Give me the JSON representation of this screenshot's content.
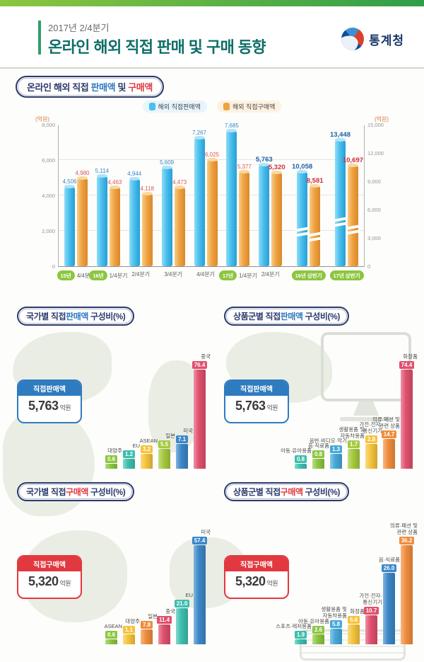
{
  "header": {
    "period": "2017년 2/4분기",
    "title": "온라인 해외 직접 판매 및 구매 동향",
    "agency": "통계청"
  },
  "main_section": {
    "title_pre": "온라인 해외 직접 ",
    "title_sales": "판매액",
    "title_mid": " 및 ",
    "title_purchase": "구매액",
    "left_unit": "(억원)",
    "right_unit": "(억원)",
    "legend": [
      {
        "label": "해외 직접판매액",
        "color": "#4bbfed"
      },
      {
        "label": "해외 직접구매액",
        "color": "#f0a343"
      }
    ]
  },
  "colors": {
    "sales_accent": "#2f7bbf",
    "purchase_accent": "#e2383f"
  },
  "chart_data": [
    {
      "type": "bar",
      "title": "온라인 해외 직접 판매액 및 구매액",
      "unit": "억원",
      "legend_position": "top",
      "grid": true,
      "left_axis": {
        "max": 8000,
        "ticks": [
          0,
          2000,
          4000,
          6000,
          8000
        ]
      },
      "right_axis": {
        "max": 15000,
        "ticks": [
          0,
          3000,
          6000,
          9000,
          12000,
          15000
        ]
      },
      "series_names": [
        "해외 직접판매액",
        "해외 직접구매액"
      ],
      "groups": [
        {
          "year_pill": "15년",
          "label": "4/4분기",
          "axis": "left",
          "sales": 4506,
          "purchase": 4980,
          "em": false,
          "break_mark": false
        },
        {
          "year_pill": "16년",
          "label": "1/4분기",
          "axis": "left",
          "sales": 5114,
          "purchase": 4463,
          "em": false,
          "break_mark": false
        },
        {
          "year_pill": null,
          "label": "2/4분기",
          "axis": "left",
          "sales": 4944,
          "purchase": 4118,
          "em": false,
          "break_mark": false
        },
        {
          "year_pill": null,
          "label": "3/4분기",
          "axis": "left",
          "sales": 5609,
          "purchase": 4473,
          "em": false,
          "break_mark": false
        },
        {
          "year_pill": null,
          "label": "4/4분기",
          "axis": "left",
          "sales": 7267,
          "purchase": 6025,
          "em": false,
          "break_mark": false
        },
        {
          "year_pill": "17년",
          "label": "1/4분기",
          "axis": "left",
          "sales": 7685,
          "purchase": 5377,
          "em": false,
          "break_mark": false
        },
        {
          "year_pill": null,
          "label": "2/4분기",
          "axis": "left",
          "sales": 5763,
          "purchase": 5320,
          "em": true,
          "break_mark": false
        },
        {
          "year_pill": "16년 상반기",
          "label": null,
          "axis": "right",
          "sales": 10058,
          "purchase": 8581,
          "em": true,
          "break_mark": true
        },
        {
          "year_pill": "17년 상반기",
          "label": null,
          "axis": "right",
          "sales": 13448,
          "purchase": 10697,
          "em": true,
          "break_mark": true
        }
      ]
    },
    {
      "type": "bar",
      "title_pre": "국가별 직접",
      "title_em": "판매액",
      "title_post": " 구성비(%)",
      "em_color": "#2f7bbf",
      "badge": {
        "label": "직접판매액",
        "value": "5,763",
        "unit": "억원",
        "color": "#2f7bbf"
      },
      "bars": [
        {
          "label": "대양주",
          "value": 0.6,
          "color": "#8cc63f"
        },
        {
          "label": "EU",
          "value": 1.2,
          "color": "#3dbfae"
        },
        {
          "label": "ASEAN",
          "value": 3.2,
          "color": "#f5c33b"
        },
        {
          "label": "일본",
          "value": 5.5,
          "color": "#a5c93d"
        },
        {
          "label": "미국",
          "value": 7.1,
          "color": "#3b87c8"
        },
        {
          "label": "중국",
          "value": 76.4,
          "color": "#e0506e"
        }
      ]
    },
    {
      "type": "bar",
      "title_pre": "상품군별 직접",
      "title_em": "판매액",
      "title_post": " 구성비(%)",
      "em_color": "#2f7bbf",
      "badge": {
        "label": "직접판매액",
        "value": "5,763",
        "unit": "억원",
        "color": "#2f7bbf"
      },
      "bars": [
        {
          "label": "아동·유아용품",
          "value": 0.8,
          "color": "#3dbfae"
        },
        {
          "label": "음·식료품",
          "value": 0.8,
          "color": "#8cc63f"
        },
        {
          "label": "음반·비디오·악기",
          "value": 1.3,
          "color": "#45a8d8"
        },
        {
          "label": "생활용품 및\n자동차용품",
          "value": 1.7,
          "color": "#a5c93d"
        },
        {
          "label": "가전·전자·\n통신기기",
          "value": 2.8,
          "color": "#f5c33b"
        },
        {
          "label": "의류·패션 및\n관련 상품",
          "value": 14.7,
          "color": "#f08c3c"
        },
        {
          "label": "화장품",
          "value": 74.4,
          "color": "#e0506e"
        }
      ]
    },
    {
      "type": "bar",
      "title_pre": "국가별 직접",
      "title_em": "구매액",
      "title_post": " 구성비(%)",
      "em_color": "#e2383f",
      "badge": {
        "label": "직접구매액",
        "value": "5,320",
        "unit": "억원",
        "color": "#e2383f"
      },
      "bars": [
        {
          "label": "ASEAN",
          "value": 0.6,
          "color": "#8cc63f"
        },
        {
          "label": "대양주",
          "value": 1.1,
          "color": "#f5c33b"
        },
        {
          "label": "일본",
          "value": 7.8,
          "color": "#f08c3c"
        },
        {
          "label": "중국",
          "value": 11.4,
          "color": "#e0506e"
        },
        {
          "label": "EU",
          "value": 21.0,
          "color": "#3dbfae"
        },
        {
          "label": "미국",
          "value": 57.4,
          "color": "#3b87c8"
        }
      ]
    },
    {
      "type": "bar",
      "title_pre": "상품군별 직접",
      "title_em": "구매액",
      "title_post": " 구성비(%)",
      "em_color": "#e2383f",
      "badge": {
        "label": "직접구매액",
        "value": "5,320",
        "unit": "억원",
        "color": "#e2383f"
      },
      "bars": [
        {
          "label": "스포츠·레저용품",
          "value": 1.9,
          "color": "#3dbfae"
        },
        {
          "label": "아동·유아용품",
          "value": 2.6,
          "color": "#8cc63f"
        },
        {
          "label": "생활용품 및\n자동차용품",
          "value": 5.8,
          "color": "#45a8d8"
        },
        {
          "label": "화장품",
          "value": 6.6,
          "color": "#f5c33b"
        },
        {
          "label": "가전·전자·\n통신기기",
          "value": 10.7,
          "color": "#e0506e"
        },
        {
          "label": "음·식료품",
          "value": 26.0,
          "color": "#3b87c8"
        },
        {
          "label": "의류·패션 및\n관련 상품",
          "value": 36.2,
          "color": "#f08c3c"
        }
      ]
    }
  ]
}
